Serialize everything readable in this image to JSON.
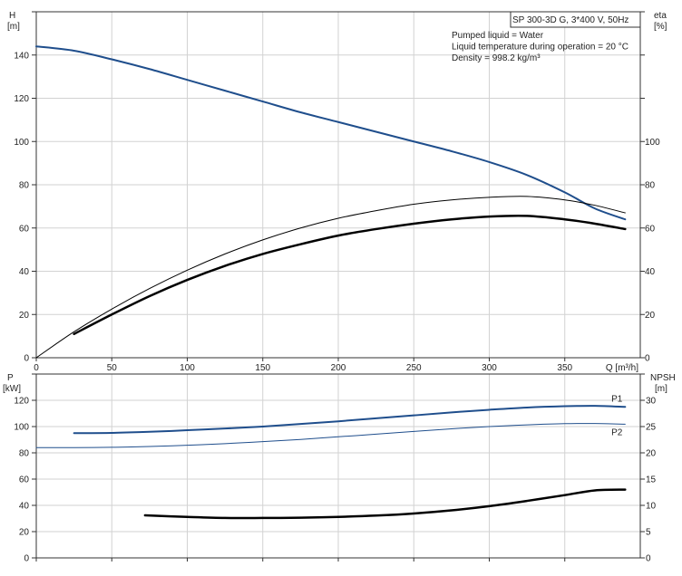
{
  "chart_data": [
    {
      "type": "line",
      "panel": "top",
      "title": "SP 300-3D G, 3*400 V, 50Hz",
      "annotations": [
        "Pumped liquid = Water",
        "Liquid temperature during operation = 20 °C",
        "Density = 998.2 kg/m³"
      ],
      "xlabel": "Q [m³/h]",
      "ylabel_left": [
        "H",
        "[m]"
      ],
      "ylabel_right": [
        "eta",
        "[%]"
      ],
      "xlim": [
        0,
        400
      ],
      "ylim_left": [
        0,
        160
      ],
      "ylim_right": [
        0,
        160
      ],
      "x_ticks": [
        0,
        50,
        100,
        150,
        200,
        250,
        300,
        350
      ],
      "y_ticks_left": [
        0,
        20,
        40,
        60,
        80,
        100,
        120,
        140
      ],
      "y_ticks_right": [
        0,
        20,
        40,
        60,
        80,
        100
      ],
      "grid": true,
      "series": [
        {
          "id": "H",
          "axis": "left",
          "color": "#1f4e8c",
          "width": 2,
          "points": [
            [
              0,
              144
            ],
            [
              25,
              142
            ],
            [
              50,
              138
            ],
            [
              75,
              133.5
            ],
            [
              100,
              128.5
            ],
            [
              125,
              123.5
            ],
            [
              150,
              118.5
            ],
            [
              175,
              113.5
            ],
            [
              200,
              109
            ],
            [
              225,
              104.5
            ],
            [
              250,
              100
            ],
            [
              275,
              95.5
            ],
            [
              300,
              90.5
            ],
            [
              325,
              84.5
            ],
            [
              350,
              76.5
            ],
            [
              370,
              69
            ],
            [
              390,
              64
            ]
          ]
        },
        {
          "id": "eta_thin",
          "axis": "right",
          "color": "#000000",
          "width": 1,
          "points": [
            [
              0,
              0
            ],
            [
              25,
              12
            ],
            [
              50,
              22.5
            ],
            [
              75,
              32
            ],
            [
              100,
              40.5
            ],
            [
              125,
              48
            ],
            [
              150,
              54.5
            ],
            [
              175,
              60
            ],
            [
              200,
              64.5
            ],
            [
              225,
              68
            ],
            [
              250,
              71
            ],
            [
              275,
              73
            ],
            [
              300,
              74.2
            ],
            [
              325,
              74.6
            ],
            [
              350,
              73
            ],
            [
              370,
              70.5
            ],
            [
              390,
              67
            ]
          ]
        },
        {
          "id": "eta_thick",
          "axis": "right",
          "color": "#000000",
          "width": 2.5,
          "points": [
            [
              25,
              11
            ],
            [
              50,
              20
            ],
            [
              75,
              28.5
            ],
            [
              100,
              36
            ],
            [
              125,
              42.5
            ],
            [
              150,
              48
            ],
            [
              175,
              52.5
            ],
            [
              200,
              56.5
            ],
            [
              225,
              59.5
            ],
            [
              250,
              62
            ],
            [
              275,
              64
            ],
            [
              300,
              65.3
            ],
            [
              325,
              65.6
            ],
            [
              350,
              64
            ],
            [
              370,
              62
            ],
            [
              390,
              59.5
            ]
          ]
        }
      ]
    },
    {
      "type": "line",
      "panel": "bottom",
      "xlim": [
        0,
        400
      ],
      "ylabel_left": [
        "P",
        "[kW]"
      ],
      "ylabel_right": [
        "NPSH",
        "[m]"
      ],
      "ylim_left": [
        0,
        140
      ],
      "ylim_right": [
        0,
        35
      ],
      "y_ticks_left": [
        0,
        20,
        40,
        60,
        80,
        100,
        120
      ],
      "y_ticks_right": [
        0,
        5,
        10,
        15,
        20,
        25,
        30
      ],
      "grid": true,
      "series": [
        {
          "id": "P1",
          "name": "P1",
          "axis": "left",
          "color": "#1f4e8c",
          "width": 2,
          "points": [
            [
              25,
              95
            ],
            [
              50,
              95.2
            ],
            [
              75,
              96
            ],
            [
              100,
              97.2
            ],
            [
              125,
              98.5
            ],
            [
              150,
              100
            ],
            [
              175,
              102
            ],
            [
              200,
              104
            ],
            [
              225,
              106.3
            ],
            [
              250,
              108.5
            ],
            [
              275,
              110.8
            ],
            [
              300,
              112.8
            ],
            [
              325,
              114.5
            ],
            [
              350,
              115.5
            ],
            [
              370,
              115.8
            ],
            [
              390,
              115
            ]
          ]
        },
        {
          "id": "P2",
          "name": "P2",
          "axis": "left",
          "color": "#1f4e8c",
          "width": 1,
          "points": [
            [
              0,
              84
            ],
            [
              25,
              84
            ],
            [
              50,
              84.2
            ],
            [
              75,
              84.8
            ],
            [
              100,
              85.8
            ],
            [
              125,
              87
            ],
            [
              150,
              88.5
            ],
            [
              175,
              90.2
            ],
            [
              200,
              92.2
            ],
            [
              225,
              94.2
            ],
            [
              250,
              96.3
            ],
            [
              275,
              98.3
            ],
            [
              300,
              100
            ],
            [
              325,
              101.3
            ],
            [
              350,
              102.2
            ],
            [
              370,
              102.3
            ],
            [
              390,
              101.8
            ]
          ]
        },
        {
          "id": "NPSH",
          "axis": "right",
          "color": "#000000",
          "width": 2.5,
          "points": [
            [
              72,
              8.1
            ],
            [
              100,
              7.8
            ],
            [
              125,
              7.6
            ],
            [
              150,
              7.6
            ],
            [
              175,
              7.65
            ],
            [
              200,
              7.8
            ],
            [
              225,
              8.05
            ],
            [
              250,
              8.45
            ],
            [
              275,
              9.05
            ],
            [
              300,
              9.85
            ],
            [
              325,
              10.85
            ],
            [
              350,
              11.95
            ],
            [
              370,
              12.85
            ],
            [
              390,
              13
            ]
          ]
        }
      ]
    }
  ]
}
